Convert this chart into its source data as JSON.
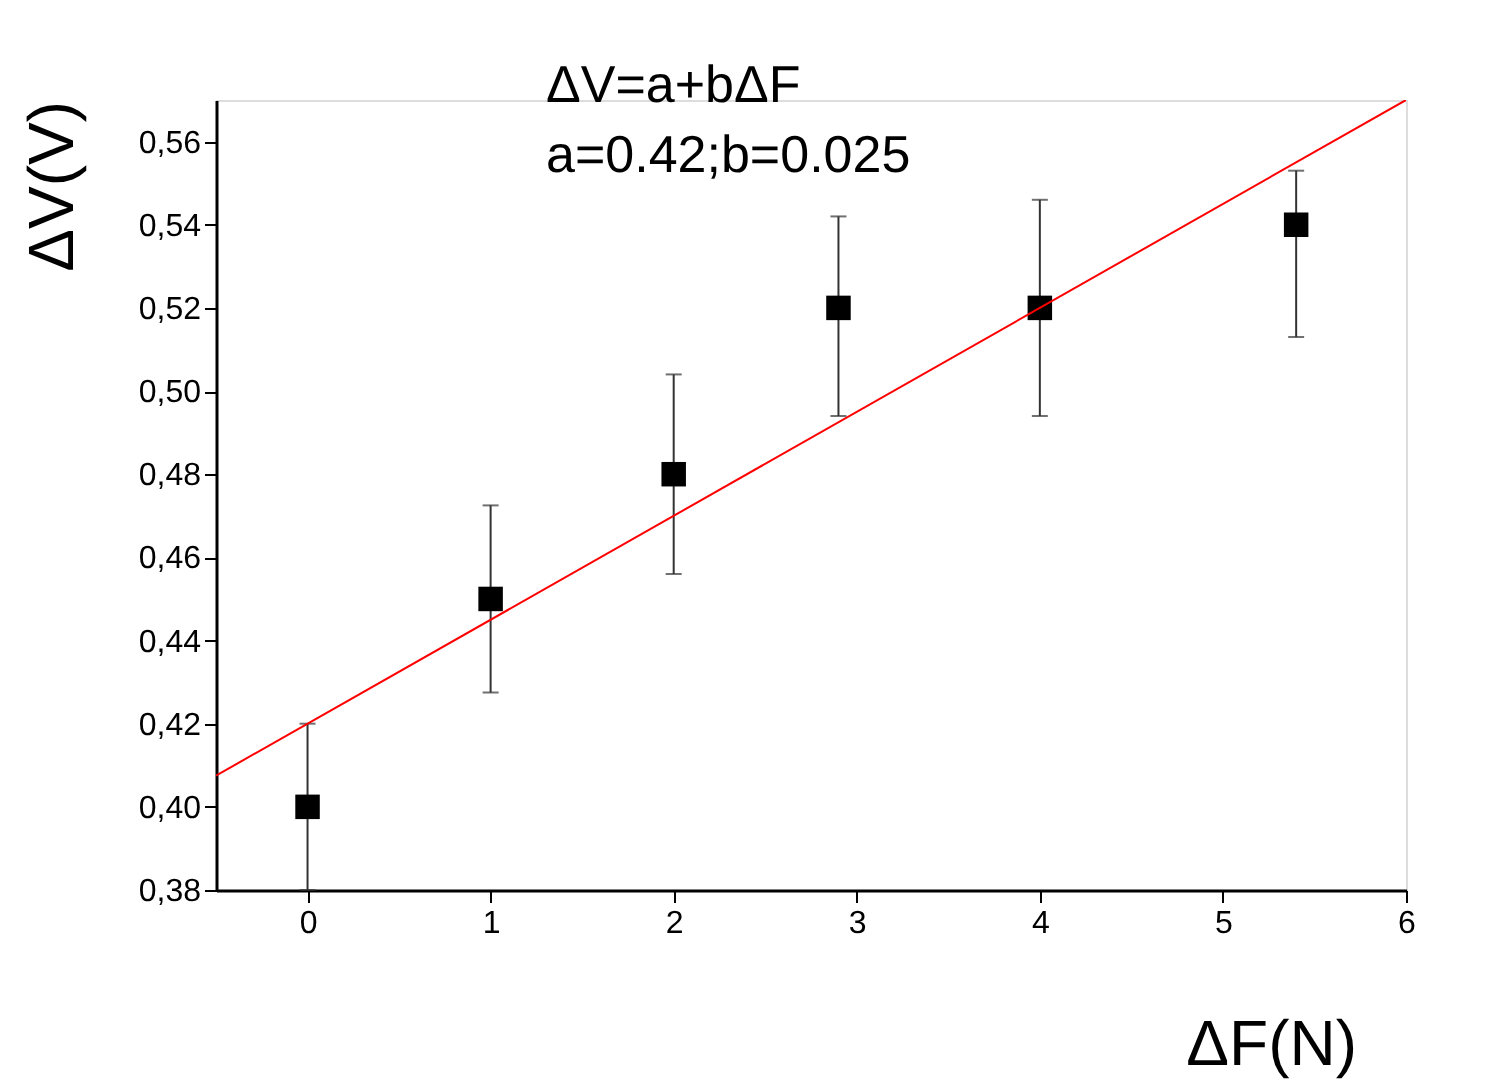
{
  "chart_data": {
    "type": "scatter",
    "xlabel": "ΔF(N)",
    "ylabel": "ΔV(V)",
    "annotations": [
      "ΔV=a+bΔF",
      "a=0.42;b=0.025"
    ],
    "series": [
      {
        "color": "#000000",
        "marker": "square",
        "x": [
          0,
          1,
          2,
          2.9,
          4,
          5.4
        ],
        "values": [
          0.4,
          0.45,
          0.48,
          0.52,
          0.52,
          0.54
        ],
        "errors": [
          [
            0.38,
            0.42
          ],
          [
            0.4275,
            0.4725
          ],
          [
            0.456,
            0.504
          ],
          [
            0.494,
            0.542
          ],
          [
            0.494,
            0.546
          ],
          [
            0.513,
            0.553
          ]
        ]
      },
      {
        "type": "line",
        "color": "#ff0000",
        "x": [
          -0.5,
          6
        ],
        "values": [
          0.4075,
          0.57
        ]
      }
    ],
    "xlim": [
      -0.5,
      6
    ],
    "xticks": [
      0,
      1,
      2,
      3,
      4,
      5,
      6
    ],
    "ylim": [
      0.38,
      0.57
    ],
    "yticks": [
      {
        "value": 0.38,
        "label": "0,38"
      },
      {
        "value": 0.4,
        "label": "0,40"
      },
      {
        "value": 0.42,
        "label": "0,42"
      },
      {
        "value": 0.44,
        "label": "0,44"
      },
      {
        "value": 0.46,
        "label": "0,46"
      },
      {
        "value": 0.48,
        "label": "0,48"
      },
      {
        "value": 0.5,
        "label": "0,50"
      },
      {
        "value": 0.52,
        "label": "0,52"
      },
      {
        "value": 0.54,
        "label": "0,54"
      },
      {
        "value": 0.56,
        "label": "0,56"
      }
    ],
    "grid": false
  }
}
